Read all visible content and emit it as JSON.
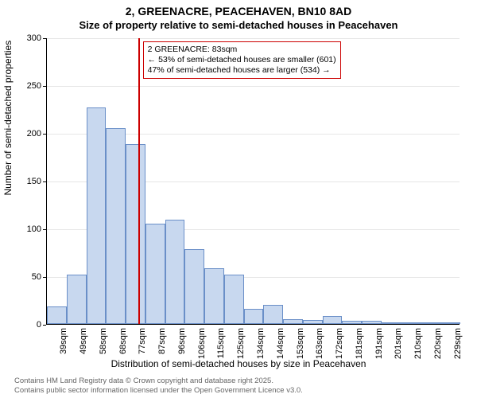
{
  "title_main": "2, GREENACRE, PEACEHAVEN, BN10 8AD",
  "title_sub": "Size of property relative to semi-detached houses in Peacehaven",
  "ylabel": "Number of semi-detached properties",
  "xlabel": "Distribution of semi-detached houses by size in Peacehaven",
  "chart": {
    "type": "histogram",
    "ylim": [
      0,
      300
    ],
    "ytick_step": 50,
    "grid_color": "#e6e6e6",
    "axis_color": "#000000",
    "bar_fill": "#c8d8ef",
    "bar_stroke": "#6a8fc8",
    "background_color": "#ffffff",
    "label_fontsize": 12,
    "tick_fontsize": 11,
    "title_fontsize": 14,
    "categories": [
      "39sqm",
      "49sqm",
      "58sqm",
      "68sqm",
      "77sqm",
      "87sqm",
      "96sqm",
      "106sqm",
      "115sqm",
      "125sqm",
      "134sqm",
      "144sqm",
      "153sqm",
      "163sqm",
      "172sqm",
      "181sqm",
      "191sqm",
      "201sqm",
      "210sqm",
      "220sqm",
      "229sqm"
    ],
    "values": [
      18,
      52,
      227,
      205,
      188,
      105,
      109,
      78,
      58,
      52,
      16,
      20,
      5,
      4,
      8,
      3,
      3,
      0,
      0,
      0,
      2
    ]
  },
  "marker": {
    "color": "#cc0000",
    "position_value": 83,
    "x_min": 39,
    "x_step": 9.5
  },
  "annotation": {
    "line1": "2 GREENACRE: 83sqm",
    "line2": "← 53% of semi-detached houses are smaller (601)",
    "line3": "47% of semi-detached houses are larger (534) →",
    "border_color": "#cc0000"
  },
  "footer": {
    "line1": "Contains HM Land Registry data © Crown copyright and database right 2025.",
    "line2": "Contains public sector information licensed under the Open Government Licence v3.0."
  }
}
